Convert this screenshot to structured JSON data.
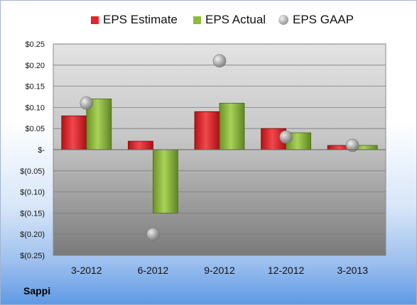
{
  "company": "Sappi",
  "colors": {
    "estimate": "#e0262c",
    "actual": "#8dba3c",
    "gaap": "#a8a8a8"
  },
  "chart_data": {
    "type": "bar",
    "categories": [
      "3-2012",
      "6-2012",
      "9-2012",
      "12-2012",
      "3-2013"
    ],
    "series": [
      {
        "name": "EPS Estimate",
        "kind": "bar",
        "values": [
          0.08,
          0.02,
          0.09,
          0.05,
          0.01
        ]
      },
      {
        "name": "EPS Actual",
        "kind": "bar",
        "values": [
          0.12,
          -0.15,
          0.11,
          0.04,
          0.01
        ]
      },
      {
        "name": "EPS GAAP",
        "kind": "marker",
        "values": [
          0.11,
          -0.2,
          0.21,
          0.03,
          0.01
        ]
      }
    ],
    "y_ticks": [
      0.25,
      0.2,
      0.15,
      0.1,
      0.05,
      0,
      -0.05,
      -0.1,
      -0.15,
      -0.2,
      -0.25
    ],
    "y_tick_labels": [
      "$0.25",
      "$0.20",
      "$0.15",
      "$0.10",
      "$0.05",
      "$-",
      "$(0.05)",
      "$(0.10)",
      "$(0.15)",
      "$(0.20)",
      "$(0.25)"
    ],
    "ylim": [
      -0.25,
      0.25
    ],
    "grid": true,
    "legend_position": "top"
  }
}
